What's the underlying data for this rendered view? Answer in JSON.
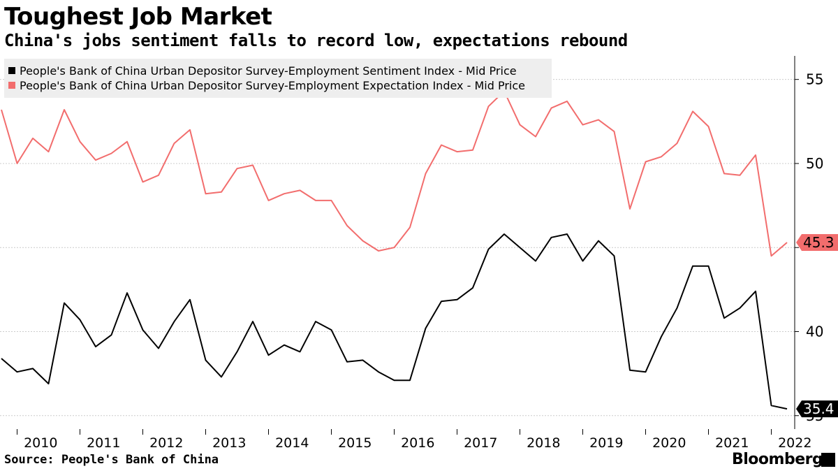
{
  "header": {
    "title": "Toughest Job Market",
    "subtitle": "China's jobs sentiment falls to record low, expectations rebound"
  },
  "footer": {
    "source": "Source: People's Bank of China",
    "brand": "Bloomberg"
  },
  "chart_data": {
    "type": "line",
    "title": "Toughest Job Market",
    "subtitle": "China's jobs sentiment falls to record low, expectations rebound",
    "x": [
      "2009Q4",
      "2010Q1",
      "2010Q2",
      "2010Q3",
      "2010Q4",
      "2011Q1",
      "2011Q2",
      "2011Q3",
      "2011Q4",
      "2012Q1",
      "2012Q2",
      "2012Q3",
      "2012Q4",
      "2013Q1",
      "2013Q2",
      "2013Q3",
      "2013Q4",
      "2014Q1",
      "2014Q2",
      "2014Q3",
      "2014Q4",
      "2015Q1",
      "2015Q2",
      "2015Q3",
      "2015Q4",
      "2016Q1",
      "2016Q2",
      "2016Q3",
      "2016Q4",
      "2017Q1",
      "2017Q2",
      "2017Q3",
      "2017Q4",
      "2018Q1",
      "2018Q2",
      "2018Q3",
      "2018Q4",
      "2019Q1",
      "2019Q2",
      "2019Q3",
      "2019Q4",
      "2020Q1",
      "2020Q2",
      "2020Q3",
      "2020Q4",
      "2021Q1",
      "2021Q2",
      "2021Q3",
      "2021Q4",
      "2022Q1",
      "2022Q2"
    ],
    "x_tick_labels": [
      "2010",
      "2011",
      "2012",
      "2013",
      "2014",
      "2015",
      "2016",
      "2017",
      "2018",
      "2019",
      "2020",
      "2021",
      "2022"
    ],
    "y_tick_labels": [
      "55",
      "50",
      "40",
      "35"
    ],
    "ylim": [
      34.2,
      56.4
    ],
    "series": [
      {
        "name": "People's Bank of China Urban Depositor Survey-Employment Sentiment Index - Mid Price",
        "color": "#000000",
        "last_value_label": "35.4",
        "values": [
          38.4,
          37.6,
          37.8,
          36.9,
          41.7,
          40.7,
          39.1,
          39.8,
          42.3,
          40.1,
          39.0,
          40.6,
          41.9,
          38.3,
          37.3,
          38.8,
          40.6,
          38.6,
          39.2,
          38.8,
          40.6,
          40.1,
          38.2,
          38.3,
          37.6,
          37.1,
          37.1,
          40.2,
          41.8,
          41.9,
          42.6,
          44.9,
          45.8,
          45.0,
          44.2,
          45.6,
          45.8,
          44.2,
          45.4,
          44.5,
          37.7,
          37.6,
          39.7,
          41.4,
          43.9,
          43.9,
          40.8,
          41.4,
          42.4,
          35.6,
          35.4
        ]
      },
      {
        "name": "People's Bank of China Urban Depositor Survey-Employment Expectation Index - Mid Price",
        "color": "#f26d6d",
        "last_value_label": "45.3",
        "values": [
          53.2,
          50.0,
          51.5,
          50.7,
          53.2,
          51.3,
          50.2,
          50.6,
          51.3,
          48.9,
          49.3,
          51.2,
          52.0,
          48.2,
          48.3,
          49.7,
          49.9,
          47.8,
          48.2,
          48.4,
          47.8,
          47.8,
          46.3,
          45.4,
          44.8,
          45.0,
          46.2,
          49.4,
          51.1,
          50.7,
          50.8,
          53.4,
          54.3,
          52.3,
          51.6,
          53.3,
          53.7,
          52.3,
          52.6,
          51.9,
          47.3,
          50.1,
          50.4,
          51.2,
          53.1,
          52.2,
          49.4,
          49.3,
          50.5,
          44.5,
          45.3
        ]
      }
    ]
  }
}
